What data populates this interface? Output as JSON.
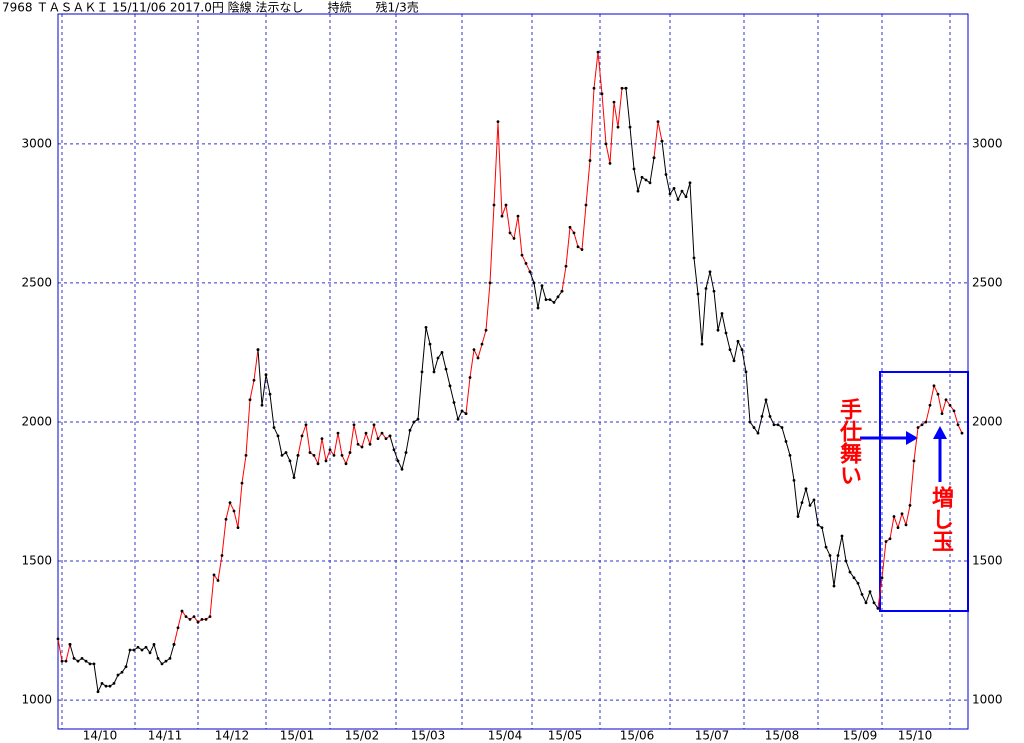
{
  "chart_data": {
    "type": "line",
    "title": "7968 ＴＡＳＡＫＩ 15/11/06 2017.0円 陰線 法示なし　　持続　　残1/3売",
    "xlim": [
      0,
      227.5
    ],
    "xticks": [
      {
        "value": 10.5,
        "label": "14/10"
      },
      {
        "value": 26.75,
        "label": "14/11"
      },
      {
        "value": 43.5,
        "label": "14/12"
      },
      {
        "value": 59.75,
        "label": "15/01"
      },
      {
        "value": 76,
        "label": "15/02"
      },
      {
        "value": 92.5,
        "label": "15/03"
      },
      {
        "value": 111.75,
        "label": "15/04"
      },
      {
        "value": 126.75,
        "label": "15/05"
      },
      {
        "value": 144.75,
        "label": "15/06"
      },
      {
        "value": 163.5,
        "label": "15/07"
      },
      {
        "value": 181,
        "label": "15/08"
      },
      {
        "value": 200.5,
        "label": "15/09"
      },
      {
        "value": 214.25,
        "label": "15/10"
      }
    ],
    "xgrid": [
      1,
      19.25,
      35,
      52,
      68,
      84.5,
      101,
      118.5,
      135.5,
      153,
      171.5,
      190,
      206,
      223
    ],
    "ylim": [
      896,
      3467
    ],
    "yticks": [
      1000,
      1500,
      2000,
      2500,
      3000
    ],
    "grid": true,
    "grid_color": "#3333cc",
    "frame_color": "#0000cc",
    "marker_color": "#000000",
    "annotations": [
      "手仕舞い",
      "増し玉"
    ],
    "series": [
      {
        "color": "#ff0000",
        "x": [
          0,
          1,
          2,
          3
        ],
        "values": [
          1220,
          1140,
          1140,
          1200
        ]
      },
      {
        "color": "#000000",
        "x": [
          3,
          4,
          5,
          6,
          7,
          8,
          9,
          10,
          11,
          12,
          13,
          14,
          15,
          16,
          17,
          18,
          19,
          20,
          21,
          22,
          23,
          24,
          25,
          26,
          27,
          28,
          29
        ],
        "values": [
          1200,
          1150,
          1140,
          1150,
          1140,
          1130,
          1130,
          1030,
          1060,
          1050,
          1050,
          1060,
          1090,
          1100,
          1120,
          1180,
          1180,
          1190,
          1180,
          1190,
          1170,
          1200,
          1150,
          1130,
          1140,
          1150,
          1200
        ]
      },
      {
        "color": "#ff0000",
        "x": [
          29,
          30,
          31,
          32,
          33,
          34,
          35,
          36,
          37,
          38,
          39,
          40,
          41,
          42,
          43,
          44,
          45,
          46,
          47,
          48,
          49,
          50
        ],
        "values": [
          1200,
          1260,
          1320,
          1300,
          1290,
          1300,
          1280,
          1290,
          1290,
          1300,
          1450,
          1430,
          1520,
          1650,
          1710,
          1680,
          1620,
          1780,
          1880,
          2080,
          2150,
          2260
        ]
      },
      {
        "color": "#000000",
        "x": [
          50,
          51,
          52,
          53,
          54,
          55,
          56,
          57,
          58,
          59,
          60
        ],
        "values": [
          2260,
          2060,
          2170,
          2100,
          1980,
          1950,
          1880,
          1890,
          1860,
          1800,
          1880
        ]
      },
      {
        "color": "#ff0000",
        "x": [
          60,
          61,
          62,
          63,
          64,
          65,
          66,
          67,
          68,
          69,
          70,
          71,
          72,
          73,
          74,
          75,
          76,
          77,
          78,
          79,
          80,
          81,
          82,
          83
        ],
        "values": [
          1880,
          1950,
          1990,
          1890,
          1880,
          1850,
          1940,
          1860,
          1900,
          1880,
          1960,
          1880,
          1850,
          1890,
          1990,
          1920,
          1910,
          1960,
          1920,
          1990,
          1940,
          1960,
          1940,
          1950
        ]
      },
      {
        "color": "#000000",
        "x": [
          83,
          84,
          85,
          86,
          87,
          88,
          89,
          90,
          91,
          92,
          93,
          94,
          95,
          96,
          97,
          98,
          99,
          100,
          101,
          102
        ],
        "values": [
          1950,
          1900,
          1860,
          1830,
          1890,
          1970,
          2000,
          2010,
          2180,
          2340,
          2280,
          2180,
          2230,
          2250,
          2190,
          2130,
          2070,
          2010,
          2040,
          2030
        ]
      },
      {
        "color": "#ff0000",
        "x": [
          102,
          103,
          104,
          105,
          106,
          107,
          108,
          109,
          110,
          111,
          112,
          113,
          114,
          115,
          116,
          117,
          118
        ],
        "values": [
          2030,
          2160,
          2260,
          2230,
          2280,
          2330,
          2500,
          2780,
          3080,
          2740,
          2780,
          2680,
          2660,
          2740,
          2600,
          2570,
          2540
        ]
      },
      {
        "color": "#000000",
        "x": [
          118,
          119,
          120,
          121,
          122,
          123,
          124,
          125,
          126
        ],
        "values": [
          2540,
          2500,
          2410,
          2490,
          2440,
          2440,
          2430,
          2450,
          2470
        ]
      },
      {
        "color": "#ff0000",
        "x": [
          126,
          127,
          128,
          129,
          130,
          131,
          132,
          133,
          134,
          135,
          136,
          137,
          138,
          139,
          140,
          141,
          142
        ],
        "values": [
          2470,
          2560,
          2700,
          2680,
          2630,
          2620,
          2780,
          2940,
          3200,
          3330,
          3180,
          3000,
          2930,
          3150,
          3060,
          3200,
          3200
        ]
      },
      {
        "color": "#000000",
        "x": [
          142,
          143,
          144,
          145,
          146,
          147,
          148,
          149
        ],
        "values": [
          3200,
          3060,
          2910,
          2830,
          2880,
          2870,
          2860,
          2950
        ]
      },
      {
        "color": "#ff0000",
        "x": [
          149,
          150,
          151
        ],
        "values": [
          2950,
          3080,
          3010
        ]
      },
      {
        "color": "#000000",
        "x": [
          151,
          152,
          153,
          154,
          155,
          156,
          157,
          158,
          159,
          160,
          161,
          162,
          163,
          164,
          165,
          166,
          167,
          168,
          169,
          170,
          171,
          172,
          173,
          174,
          175,
          176,
          177,
          178,
          179,
          180,
          181,
          182,
          183,
          184,
          185,
          186,
          187,
          188,
          189,
          190,
          191,
          192,
          193,
          194,
          195,
          196,
          197,
          198,
          199,
          200,
          201,
          202,
          203,
          204,
          205
        ],
        "values": [
          3010,
          2890,
          2820,
          2840,
          2800,
          2830,
          2810,
          2860,
          2590,
          2460,
          2280,
          2480,
          2540,
          2470,
          2330,
          2390,
          2320,
          2260,
          2220,
          2290,
          2260,
          2180,
          2000,
          1980,
          1960,
          2020,
          2080,
          2020,
          1990,
          1990,
          1980,
          1930,
          1880,
          1790,
          1660,
          1710,
          1760,
          1700,
          1720,
          1630,
          1620,
          1550,
          1520,
          1410,
          1520,
          1590,
          1500,
          1460,
          1440,
          1420,
          1380,
          1350,
          1390,
          1350,
          1330
        ]
      },
      {
        "color": "#ff0000",
        "x": [
          205,
          206,
          207,
          208,
          209,
          210,
          211,
          212,
          213,
          214,
          215,
          216,
          217,
          218,
          219,
          220,
          221,
          222,
          223,
          224,
          225,
          226
        ],
        "values": [
          1330,
          1440,
          1570,
          1580,
          1660,
          1620,
          1670,
          1630,
          1700,
          1860,
          1980,
          1990,
          2000,
          2060,
          2130,
          2100,
          2030,
          2080,
          2060,
          2040,
          1990,
          1960
        ]
      }
    ]
  }
}
